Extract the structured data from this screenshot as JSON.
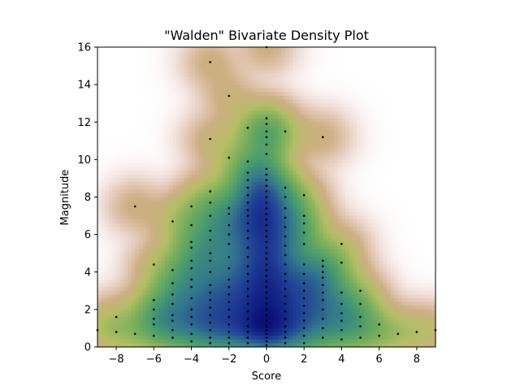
{
  "chart_data": {
    "type": "scatter",
    "title": "\"Walden\" Bivariate Density Plot",
    "xlabel": "Score",
    "ylabel": "Magnitude",
    "xlim": [
      -9,
      9
    ],
    "ylim": [
      0,
      16
    ],
    "xticks": [
      -8,
      -6,
      -4,
      -2,
      0,
      2,
      4,
      6,
      8
    ],
    "yticks": [
      0,
      2,
      4,
      6,
      8,
      10,
      12,
      14,
      16
    ],
    "grid": false,
    "background": "density heatmap (gist_earth_r-like: white to tan to green to dark blue)",
    "point_color": "#000000",
    "points": [
      [
        -9,
        0.9
      ],
      [
        -8,
        0.8
      ],
      [
        -8,
        1.6
      ],
      [
        -7,
        0.7
      ],
      [
        -7,
        7.5
      ],
      [
        -6,
        0.6
      ],
      [
        -6,
        1.2
      ],
      [
        -6,
        1.5
      ],
      [
        -6,
        2.0
      ],
      [
        -6,
        2.5
      ],
      [
        -6,
        4.4
      ],
      [
        -5,
        0.5
      ],
      [
        -5,
        0.9
      ],
      [
        -5,
        1.4
      ],
      [
        -5,
        1.7
      ],
      [
        -5,
        2.3
      ],
      [
        -5,
        2.8
      ],
      [
        -5,
        3.4
      ],
      [
        -5,
        4.1
      ],
      [
        -5,
        6.7
      ],
      [
        -4,
        0.3
      ],
      [
        -4,
        0.7
      ],
      [
        -4,
        1.2
      ],
      [
        -4,
        1.6
      ],
      [
        -4,
        2.0
      ],
      [
        -4,
        2.6
      ],
      [
        -4,
        3.2
      ],
      [
        -4,
        3.6
      ],
      [
        -4,
        4.2
      ],
      [
        -4,
        4.6
      ],
      [
        -4,
        5.3
      ],
      [
        -4,
        5.6
      ],
      [
        -4,
        6.5
      ],
      [
        -4,
        7.5
      ],
      [
        -3,
        0.2
      ],
      [
        -3,
        0.5
      ],
      [
        -3,
        0.9
      ],
      [
        -3,
        1.3
      ],
      [
        -3,
        1.7
      ],
      [
        -3,
        2.1
      ],
      [
        -3,
        2.5
      ],
      [
        -3,
        2.9
      ],
      [
        -3,
        3.3
      ],
      [
        -3,
        4.0
      ],
      [
        -3,
        4.6
      ],
      [
        -3,
        5.0
      ],
      [
        -3,
        5.7
      ],
      [
        -3,
        6.2
      ],
      [
        -3,
        7.0
      ],
      [
        -3,
        7.7
      ],
      [
        -3,
        8.3
      ],
      [
        -3,
        11.1
      ],
      [
        -3,
        15.2
      ],
      [
        -2,
        0.2
      ],
      [
        -2,
        0.5
      ],
      [
        -2,
        0.8
      ],
      [
        -2,
        1.2
      ],
      [
        -2,
        1.6
      ],
      [
        -2,
        2.0
      ],
      [
        -2,
        2.4
      ],
      [
        -2,
        2.8
      ],
      [
        -2,
        3.2
      ],
      [
        -2,
        3.6
      ],
      [
        -2,
        4.2
      ],
      [
        -2,
        4.8
      ],
      [
        -2,
        5.5
      ],
      [
        -2,
        6.0
      ],
      [
        -2,
        6.5
      ],
      [
        -2,
        7.1
      ],
      [
        -2,
        7.4
      ],
      [
        -2,
        10.1
      ],
      [
        -2,
        13.4
      ],
      [
        -1,
        0.2
      ],
      [
        -1,
        0.5
      ],
      [
        -1,
        0.8
      ],
      [
        -1,
        1.1
      ],
      [
        -1,
        1.5
      ],
      [
        -1,
        1.9
      ],
      [
        -1,
        2.3
      ],
      [
        -1,
        2.7
      ],
      [
        -1,
        3.1
      ],
      [
        -1,
        3.5
      ],
      [
        -1,
        3.9
      ],
      [
        -1,
        4.3
      ],
      [
        -1,
        4.8
      ],
      [
        -1,
        5.3
      ],
      [
        -1,
        5.8
      ],
      [
        -1,
        6.2
      ],
      [
        -1,
        6.6
      ],
      [
        -1,
        7.0
      ],
      [
        -1,
        7.3
      ],
      [
        -1,
        7.7
      ],
      [
        -1,
        8.1
      ],
      [
        -1,
        8.5
      ],
      [
        -1,
        8.9
      ],
      [
        -1,
        9.3
      ],
      [
        -1,
        9.9
      ],
      [
        -1,
        11.7
      ],
      [
        0,
        0.1
      ],
      [
        0,
        0.3
      ],
      [
        0,
        0.5
      ],
      [
        0,
        0.7
      ],
      [
        0,
        0.9
      ],
      [
        0,
        1.1
      ],
      [
        0,
        1.4
      ],
      [
        0,
        1.7
      ],
      [
        0,
        2.0
      ],
      [
        0,
        2.3
      ],
      [
        0,
        2.6
      ],
      [
        0,
        2.9
      ],
      [
        0,
        3.2
      ],
      [
        0,
        3.5
      ],
      [
        0,
        3.8
      ],
      [
        0,
        4.1
      ],
      [
        0,
        4.4
      ],
      [
        0,
        4.7
      ],
      [
        0,
        5.0
      ],
      [
        0,
        5.3
      ],
      [
        0,
        5.6
      ],
      [
        0,
        5.9
      ],
      [
        0,
        6.2
      ],
      [
        0,
        6.5
      ],
      [
        0,
        6.8
      ],
      [
        0,
        7.1
      ],
      [
        0,
        7.4
      ],
      [
        0,
        7.7
      ],
      [
        0,
        8.0
      ],
      [
        0,
        8.3
      ],
      [
        0,
        8.6
      ],
      [
        0,
        8.9
      ],
      [
        0,
        9.2
      ],
      [
        0,
        9.5
      ],
      [
        0,
        10.3
      ],
      [
        0,
        10.8
      ],
      [
        0,
        11.2
      ],
      [
        0,
        11.5
      ],
      [
        0,
        11.9
      ],
      [
        0,
        12.2
      ],
      [
        0,
        16.0
      ],
      [
        1,
        0.2
      ],
      [
        1,
        0.5
      ],
      [
        1,
        0.8
      ],
      [
        1,
        1.1
      ],
      [
        1,
        1.5
      ],
      [
        1,
        1.9
      ],
      [
        1,
        2.3
      ],
      [
        1,
        2.7
      ],
      [
        1,
        3.1
      ],
      [
        1,
        3.5
      ],
      [
        1,
        3.9
      ],
      [
        1,
        4.4
      ],
      [
        1,
        4.9
      ],
      [
        1,
        5.4
      ],
      [
        1,
        5.9
      ],
      [
        1,
        6.4
      ],
      [
        1,
        6.9
      ],
      [
        1,
        7.4
      ],
      [
        1,
        8.0
      ],
      [
        1,
        8.5
      ],
      [
        1,
        11.5
      ],
      [
        2,
        0.2
      ],
      [
        2,
        0.6
      ],
      [
        2,
        1.0
      ],
      [
        2,
        1.4
      ],
      [
        2,
        1.8
      ],
      [
        2,
        2.2
      ],
      [
        2,
        2.6
      ],
      [
        2,
        3.0
      ],
      [
        2,
        3.4
      ],
      [
        2,
        3.9
      ],
      [
        2,
        4.4
      ],
      [
        2,
        5.5
      ],
      [
        2,
        6.1
      ],
      [
        2,
        6.6
      ],
      [
        2,
        7.0
      ],
      [
        2,
        8.1
      ],
      [
        3,
        0.5
      ],
      [
        3,
        1.0
      ],
      [
        3,
        1.5
      ],
      [
        3,
        2.0
      ],
      [
        3,
        2.5
      ],
      [
        3,
        2.9
      ],
      [
        3,
        3.3
      ],
      [
        3,
        3.7
      ],
      [
        3,
        4.0
      ],
      [
        3,
        4.3
      ],
      [
        3,
        4.6
      ],
      [
        3,
        11.2
      ],
      [
        4,
        0.4
      ],
      [
        4,
        0.9
      ],
      [
        4,
        1.4
      ],
      [
        4,
        1.8
      ],
      [
        4,
        2.3
      ],
      [
        4,
        2.9
      ],
      [
        4,
        4.5
      ],
      [
        4,
        5.5
      ],
      [
        5,
        0.5
      ],
      [
        5,
        1.1
      ],
      [
        5,
        1.6
      ],
      [
        5,
        2.3
      ],
      [
        5,
        3.0
      ],
      [
        6,
        0.6
      ],
      [
        6,
        1.2
      ],
      [
        7,
        0.7
      ],
      [
        8,
        0.8
      ],
      [
        9,
        0.9
      ]
    ]
  }
}
